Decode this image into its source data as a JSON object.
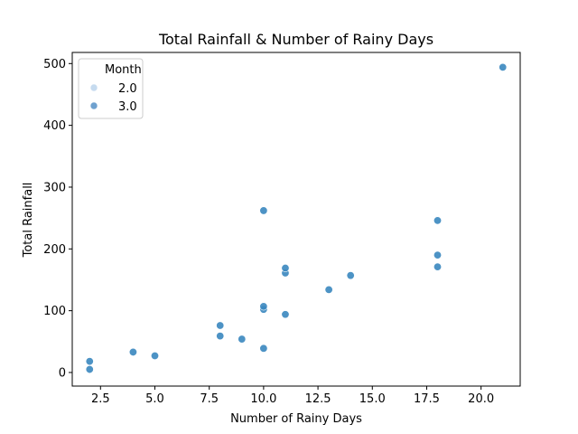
{
  "chart_data": {
    "type": "scatter",
    "title": "Total Rainfall & Number of Rainy Days",
    "xlabel": "Number of Rainy Days",
    "ylabel": "Total Rainfall",
    "xlim": [
      1.2,
      21.8
    ],
    "ylim": [
      -22,
      518
    ],
    "xticks": [
      "2.5",
      "5.0",
      "7.5",
      "10.0",
      "12.5",
      "15.0",
      "17.5",
      "20.0"
    ],
    "yticks": [
      "0",
      "100",
      "200",
      "300",
      "400",
      "500"
    ],
    "grid": false,
    "legend": {
      "title": "Month",
      "placement": "top-left",
      "entries": [
        {
          "label": "2.0",
          "color": "#c6dbef"
        },
        {
          "label": "3.0",
          "color": "#6fa1cf"
        }
      ]
    },
    "point_color": "#3a87bf",
    "points": [
      {
        "x": 2,
        "y": 5
      },
      {
        "x": 2,
        "y": 18
      },
      {
        "x": 4,
        "y": 33
      },
      {
        "x": 5,
        "y": 27
      },
      {
        "x": 8,
        "y": 59
      },
      {
        "x": 8,
        "y": 76
      },
      {
        "x": 9,
        "y": 54
      },
      {
        "x": 10,
        "y": 39
      },
      {
        "x": 10,
        "y": 102
      },
      {
        "x": 10,
        "y": 107
      },
      {
        "x": 10,
        "y": 262
      },
      {
        "x": 11,
        "y": 94
      },
      {
        "x": 11,
        "y": 161
      },
      {
        "x": 11,
        "y": 169
      },
      {
        "x": 13,
        "y": 134
      },
      {
        "x": 14,
        "y": 157
      },
      {
        "x": 18,
        "y": 171
      },
      {
        "x": 18,
        "y": 190
      },
      {
        "x": 18,
        "y": 246
      },
      {
        "x": 21,
        "y": 494
      }
    ]
  }
}
